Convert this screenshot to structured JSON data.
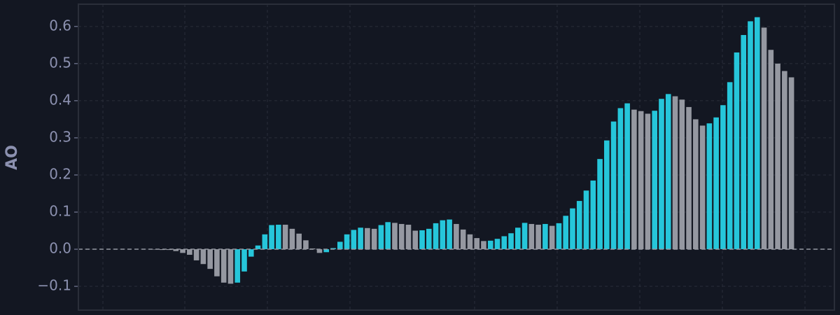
{
  "chart_data": {
    "type": "bar",
    "y_label": "AO",
    "values": [
      -0.001,
      -0.002,
      -0.002,
      -0.005,
      -0.01,
      -0.015,
      -0.03,
      -0.04,
      -0.053,
      -0.073,
      -0.09,
      -0.093,
      -0.09,
      -0.06,
      -0.02,
      0.01,
      0.04,
      0.065,
      0.066,
      0.066,
      0.055,
      0.042,
      0.024,
      0.002,
      -0.01,
      -0.008,
      0.003,
      0.02,
      0.04,
      0.052,
      0.058,
      0.057,
      0.055,
      0.065,
      0.073,
      0.071,
      0.068,
      0.066,
      0.05,
      0.051,
      0.055,
      0.07,
      0.078,
      0.08,
      0.068,
      0.053,
      0.04,
      0.03,
      0.022,
      0.023,
      0.028,
      0.035,
      0.043,
      0.058,
      0.071,
      0.068,
      0.066,
      0.068,
      0.063,
      0.07,
      0.09,
      0.11,
      0.13,
      0.158,
      0.185,
      0.243,
      0.293,
      0.344,
      0.38,
      0.393,
      0.376,
      0.372,
      0.365,
      0.373,
      0.405,
      0.418,
      0.412,
      0.403,
      0.383,
      0.35,
      0.333,
      0.339,
      0.355,
      0.388,
      0.45,
      0.53,
      0.577,
      0.614,
      0.625,
      0.597,
      0.537,
      0.5,
      0.48,
      0.463
    ],
    "up_color": "#26c6da",
    "down_color": "#9598a1",
    "ylim": [
      -0.164,
      0.66
    ],
    "yticks": [
      {
        "value": -0.1,
        "label": "−0.1"
      },
      {
        "value": 0,
        "label": "0.0"
      },
      0.1,
      0.2,
      0.3,
      0.4,
      0.5,
      0.6
    ],
    "grid": true
  }
}
